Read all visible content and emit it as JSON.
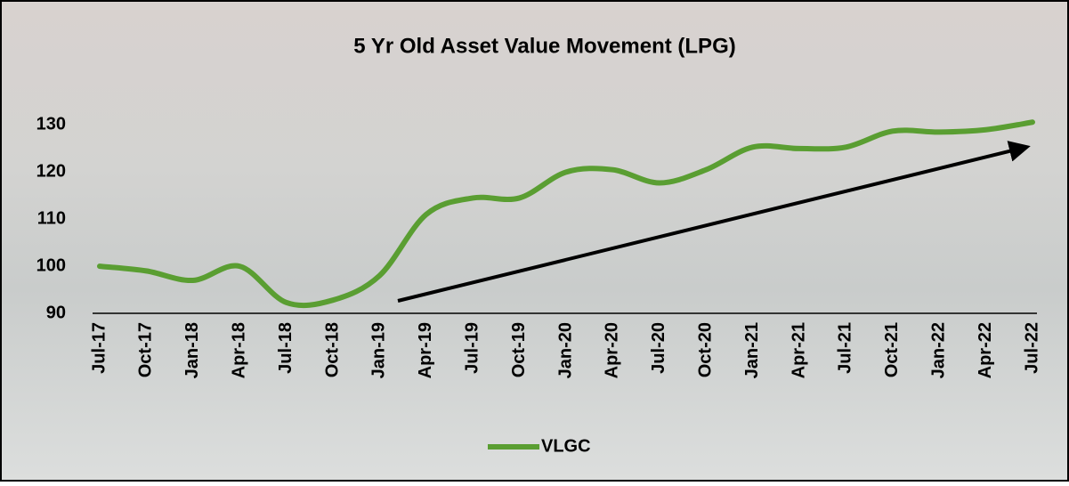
{
  "chart_data": {
    "type": "line",
    "title": "5 Yr Old Asset Value Movement (LPG)",
    "categories": [
      "Jul-17",
      "Oct-17",
      "Jan-18",
      "Apr-18",
      "Jul-18",
      "Oct-18",
      "Jan-19",
      "Apr-19",
      "Jul-19",
      "Oct-19",
      "Jan-20",
      "Apr-20",
      "Jul-20",
      "Oct-20",
      "Jan-21",
      "Apr-21",
      "Jul-21",
      "Oct-21",
      "Jan-22",
      "Apr-22",
      "Jul-22"
    ],
    "series": [
      {
        "name": "VLGC",
        "color": "#5a9e32",
        "values": [
          100,
          99,
          97,
          100,
          92.3,
          92.8,
          98,
          111,
          114.5,
          114.5,
          120,
          120.5,
          117.7,
          120.5,
          125.3,
          125,
          125.3,
          128.7,
          128.5,
          129,
          130.6
        ]
      }
    ],
    "ylim": [
      90,
      135
    ],
    "yticks": [
      90,
      100,
      110,
      120,
      130
    ],
    "grid": false,
    "legend": "bottom"
  }
}
